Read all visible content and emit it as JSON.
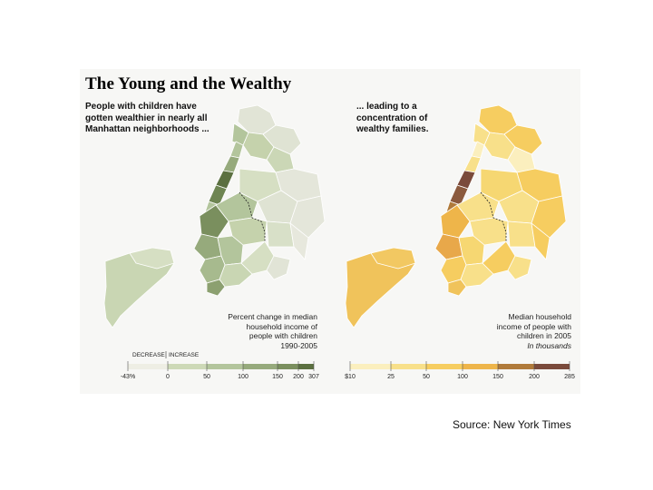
{
  "title": "The Young and the Wealthy",
  "left_subtitle": [
    "People with children have",
    "gotten wealthier in nearly all",
    "Manhattan neighborhoods ..."
  ],
  "right_subtitle": [
    "... leading to a",
    "concentration of",
    "wealthy families."
  ],
  "left_note": [
    "Percent change in median",
    "household income of",
    "people with children",
    "1990-2005"
  ],
  "right_note": [
    "Median household",
    "income of people with",
    "children in 2005"
  ],
  "right_note_italic": "In thousands",
  "left_legend": {
    "decrease_label": "DECREASE",
    "increase_label": "INCREASE",
    "ticks": [
      "-43%",
      "0",
      "50",
      "100",
      "150",
      "200",
      "307"
    ],
    "colors": [
      "#eeeee4",
      "#cdd9b7",
      "#b3c59c",
      "#96aa7c",
      "#7a8f5e",
      "#5b7040"
    ]
  },
  "right_legend": {
    "ticks": [
      "$10",
      "25",
      "50",
      "100",
      "150",
      "200",
      "285"
    ],
    "colors": [
      "#fbefbe",
      "#f8e08a",
      "#f6cd60",
      "#eeb54a",
      "#b07a3a",
      "#7a4a3b"
    ]
  },
  "source": "Source: New York Times"
}
